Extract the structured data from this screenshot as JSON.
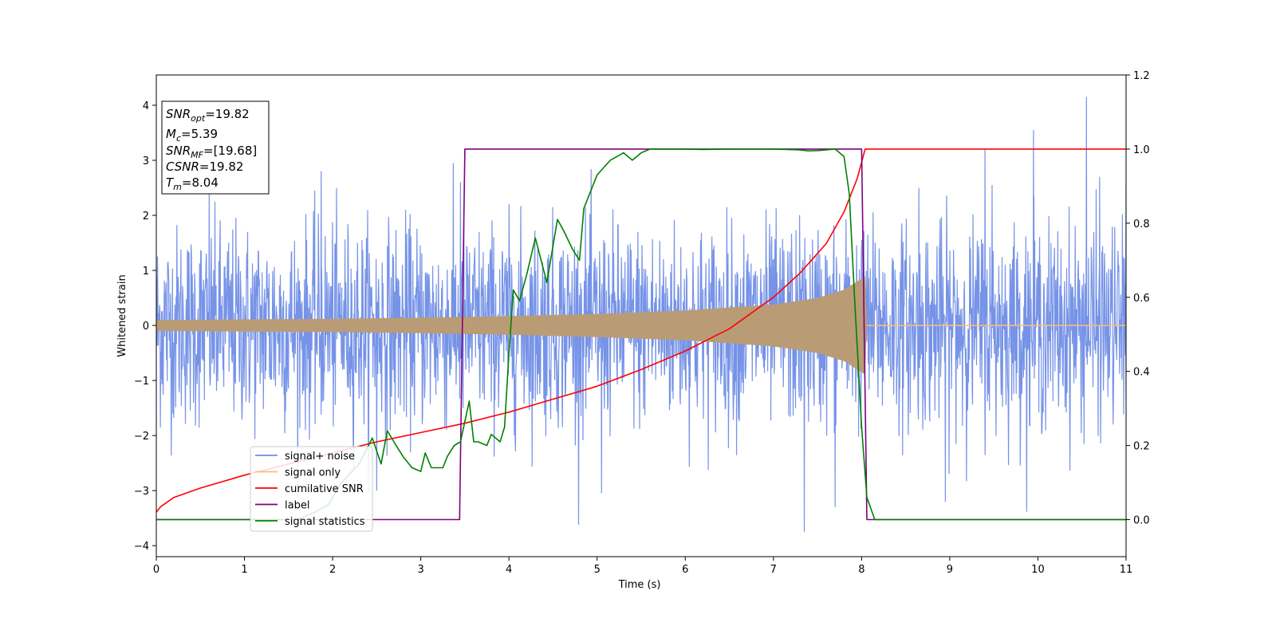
{
  "chart_data": {
    "type": "line",
    "xlabel": "Time (s)",
    "ylabel": "Whitened strain",
    "xlim": [
      0,
      11
    ],
    "ylim_left": [
      -4.2,
      4.55
    ],
    "ylim_right": [
      -0.1,
      1.2
    ],
    "x_ticks": [
      "0",
      "1",
      "2",
      "3",
      "4",
      "5",
      "6",
      "7",
      "8",
      "9",
      "10",
      "11"
    ],
    "y_ticks_left": [
      "−4",
      "−3",
      "−2",
      "−1",
      "0",
      "1",
      "2",
      "3",
      "4"
    ],
    "y_ticks_right": [
      "0.0",
      "0.2",
      "0.4",
      "0.6",
      "0.8",
      "1.0",
      "1.2"
    ],
    "annotation": {
      "lines": [
        {
          "sym": "SNR",
          "sub": "opt",
          "rest": "=19.82"
        },
        {
          "sym": "M",
          "sub": "c",
          "rest": "=5.39"
        },
        {
          "sym": "SNR",
          "sub": "MF",
          "rest": "=[19.68]"
        },
        {
          "sym": "CSNR",
          "sub": "",
          "rest": "=19.82"
        },
        {
          "sym": "T",
          "sub": "m",
          "rest": "=8.04"
        }
      ]
    },
    "legend": {
      "position": "lower-left",
      "entries": [
        {
          "label": "signal+ noise",
          "color": "#6f8de6"
        },
        {
          "label": "signal only",
          "color": "#ffbb77"
        },
        {
          "label": "cumilative SNR",
          "color": "#ff0000"
        },
        {
          "label": "label",
          "color": "#800080"
        },
        {
          "label": "signal statistics",
          "color": "#008000"
        }
      ]
    },
    "series": [
      {
        "name": "signal+ noise",
        "axis": "left",
        "color": "#6f8de6",
        "description_values": {
          "band_sigma": 0.9,
          "spike_max": [
            4.15,
            3.55,
            -3.75
          ]
        },
        "spikes": [
          [
            10.55,
            4.15
          ],
          [
            9.95,
            3.55
          ],
          [
            9.4,
            3.2
          ],
          [
            7.35,
            -3.75
          ],
          [
            5.05,
            -3.05
          ],
          [
            7.7,
            -3.3
          ],
          [
            2.5,
            -3.0
          ],
          [
            8.95,
            -3.2
          ],
          [
            0.6,
            2.45
          ],
          [
            1.87,
            2.8
          ],
          [
            3.45,
            2.6
          ],
          [
            8.65,
            2.5
          ],
          [
            9.48,
            2.55
          ],
          [
            10.7,
            2.7
          ],
          [
            11.0,
            2.55
          ]
        ]
      },
      {
        "name": "signal only",
        "axis": "left",
        "color": "#ffbb77",
        "envelope": [
          [
            0,
            0.1
          ],
          [
            1,
            0.11
          ],
          [
            2,
            0.12
          ],
          [
            3,
            0.14
          ],
          [
            4,
            0.17
          ],
          [
            5,
            0.21
          ],
          [
            6,
            0.27
          ],
          [
            7,
            0.38
          ],
          [
            7.5,
            0.5
          ],
          [
            7.8,
            0.65
          ],
          [
            8.0,
            0.85
          ],
          [
            8.04,
            0.9
          ],
          [
            8.06,
            0.0
          ],
          [
            11,
            0.0
          ]
        ]
      },
      {
        "name": "cumilative SNR",
        "axis": "right",
        "color": "#ff0000",
        "x": [
          0,
          0.05,
          0.2,
          0.5,
          1,
          1.5,
          2,
          2.5,
          3,
          3.5,
          4,
          4.5,
          5,
          5.5,
          6,
          6.5,
          7,
          7.3,
          7.6,
          7.8,
          7.95,
          8.04,
          11
        ],
        "values": [
          0.02,
          0.035,
          0.06,
          0.085,
          0.12,
          0.15,
          0.18,
          0.21,
          0.235,
          0.26,
          0.29,
          0.325,
          0.36,
          0.405,
          0.455,
          0.515,
          0.6,
          0.665,
          0.745,
          0.83,
          0.92,
          1.0,
          1.0
        ]
      },
      {
        "name": "label",
        "axis": "right",
        "color": "#800080",
        "x": [
          0,
          3.44,
          3.5,
          8.0,
          8.06,
          11
        ],
        "values": [
          0.0,
          0.0,
          1.0,
          1.0,
          0.0,
          0.0
        ]
      },
      {
        "name": "signal statistics",
        "axis": "right",
        "color": "#008000",
        "x": [
          0,
          1.6,
          1.8,
          1.95,
          2.1,
          2.3,
          2.45,
          2.55,
          2.62,
          2.72,
          2.8,
          2.9,
          3.0,
          3.05,
          3.12,
          3.25,
          3.3,
          3.38,
          3.45,
          3.55,
          3.6,
          3.65,
          3.75,
          3.8,
          3.9,
          3.95,
          4.0,
          4.05,
          4.12,
          4.2,
          4.3,
          4.43,
          4.5,
          4.55,
          4.62,
          4.72,
          4.8,
          4.85,
          5.0,
          5.15,
          5.3,
          5.4,
          5.5,
          5.6,
          5.8,
          6.0,
          6.2,
          6.5,
          6.8,
          7.0,
          7.3,
          7.4,
          7.5,
          7.7,
          7.8,
          7.86,
          7.92,
          8.0,
          8.06,
          8.15,
          11
        ],
        "values": [
          0.0,
          0.0,
          0.02,
          0.04,
          0.1,
          0.15,
          0.22,
          0.15,
          0.24,
          0.2,
          0.17,
          0.14,
          0.13,
          0.18,
          0.14,
          0.14,
          0.17,
          0.2,
          0.21,
          0.32,
          0.21,
          0.21,
          0.2,
          0.23,
          0.21,
          0.25,
          0.45,
          0.62,
          0.59,
          0.66,
          0.76,
          0.64,
          0.74,
          0.81,
          0.78,
          0.73,
          0.7,
          0.84,
          0.93,
          0.97,
          0.99,
          0.97,
          0.99,
          1.0,
          1.0,
          1.0,
          0.999,
          1.0,
          1.0,
          1.0,
          0.998,
          0.995,
          0.996,
          1.0,
          0.98,
          0.88,
          0.6,
          0.25,
          0.06,
          0.0,
          0.0
        ]
      }
    ]
  }
}
